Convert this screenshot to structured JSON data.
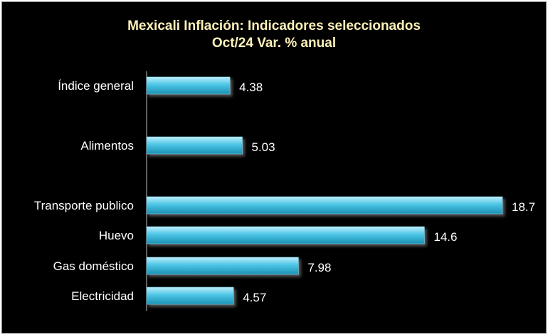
{
  "chart_data": {
    "type": "bar",
    "orientation": "horizontal",
    "title": "Mexicali Inflación: Indicadores seleccionados",
    "subtitle": "Oct/24 Var. %  anual",
    "categories": [
      "Índice general",
      "Alimentos",
      "Transporte publico",
      "Huevo",
      "Gas doméstico",
      "Electricidad"
    ],
    "values": [
      4.38,
      5.03,
      18.7,
      14.6,
      7.98,
      4.57
    ],
    "value_labels": [
      "4.38",
      "5.03",
      "18.7",
      "14.6",
      "7.98",
      "4.57"
    ],
    "xlim": [
      0,
      18.7
    ],
    "grid": false,
    "legend": "none",
    "colors": {
      "background": "#000000",
      "bar_light": "#bdeefa",
      "bar_mid": "#4cc6e6",
      "bar_dark": "#1b8fb2",
      "title": "#fff2b8",
      "text": "#ffffff",
      "axis": "#bfbfbf"
    }
  }
}
